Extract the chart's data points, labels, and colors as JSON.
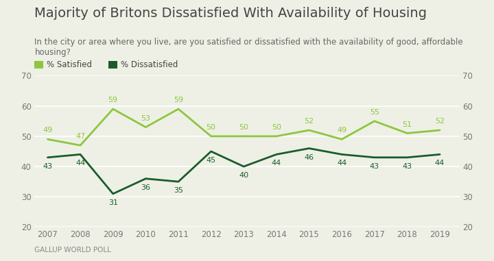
{
  "title": "Majority of Britons Dissatisfied With Availability of Housing",
  "subtitle": "In the city or area where you live, are you satisfied or dissatisfied with the availability of good, affordable\nhousing?",
  "footnote": "GALLUP WORLD POLL",
  "years": [
    2007,
    2008,
    2009,
    2010,
    2011,
    2012,
    2013,
    2014,
    2015,
    2016,
    2017,
    2018,
    2019
  ],
  "satisfied": [
    49,
    47,
    59,
    53,
    59,
    50,
    50,
    50,
    52,
    49,
    55,
    51,
    52
  ],
  "dissatisfied": [
    43,
    44,
    31,
    36,
    35,
    45,
    40,
    44,
    46,
    44,
    43,
    43,
    44
  ],
  "satisfied_color": "#8dc63f",
  "dissatisfied_color": "#1a5c2a",
  "background_color": "#eef0e5",
  "grid_color": "#ffffff",
  "legend_satisfied": "% Satisfied",
  "legend_dissatisfied": "% Dissatisfied",
  "ylim": [
    20,
    70
  ],
  "yticks": [
    20,
    30,
    40,
    50,
    60,
    70
  ],
  "title_fontsize": 14,
  "subtitle_fontsize": 8.5,
  "footnote_fontsize": 7.5,
  "label_fontsize": 8,
  "tick_fontsize": 8.5
}
